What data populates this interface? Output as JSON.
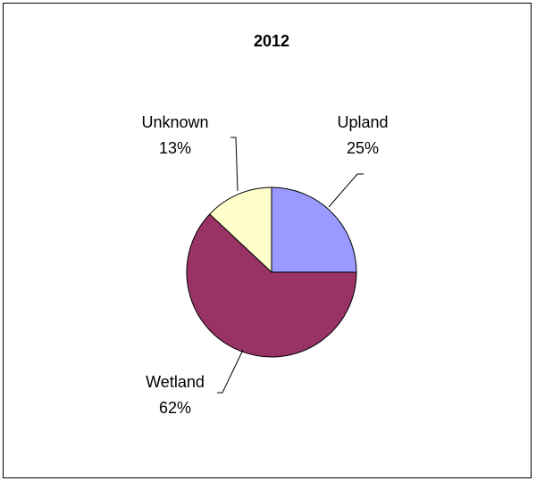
{
  "chart_data": {
    "type": "pie",
    "title": "2012",
    "categories": [
      "Upland",
      "Wetland",
      "Unknown"
    ],
    "values": [
      25,
      62,
      13
    ],
    "value_labels": [
      "25%",
      "62%",
      "13%"
    ],
    "colors": [
      "#9999ff",
      "#993366",
      "#ffffcc"
    ],
    "legend": "none"
  }
}
